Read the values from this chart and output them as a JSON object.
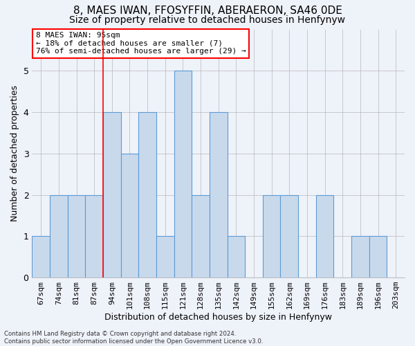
{
  "title": "8, MAES IWAN, FFOSYFFIN, ABERAERON, SA46 0DE",
  "subtitle": "Size of property relative to detached houses in Henfynyw",
  "xlabel": "Distribution of detached houses by size in Henfynyw",
  "ylabel": "Number of detached properties",
  "categories": [
    "67sqm",
    "74sqm",
    "81sqm",
    "87sqm",
    "94sqm",
    "101sqm",
    "108sqm",
    "115sqm",
    "121sqm",
    "128sqm",
    "135sqm",
    "142sqm",
    "149sqm",
    "155sqm",
    "162sqm",
    "169sqm",
    "176sqm",
    "183sqm",
    "189sqm",
    "196sqm",
    "203sqm"
  ],
  "values": [
    1,
    2,
    2,
    2,
    4,
    3,
    4,
    1,
    5,
    2,
    4,
    1,
    0,
    2,
    2,
    0,
    2,
    0,
    1,
    1,
    0
  ],
  "bar_color": "#c9d9ec",
  "bar_edge_color": "#5b9bd5",
  "red_line_index": 4,
  "annotation_text": "8 MAES IWAN: 95sqm\n← 18% of detached houses are smaller (7)\n76% of semi-detached houses are larger (29) →",
  "annotation_box_color": "white",
  "annotation_box_edge_color": "red",
  "ylim": [
    0,
    6
  ],
  "yticks": [
    0,
    1,
    2,
    3,
    4,
    5,
    6
  ],
  "footnote": "Contains HM Land Registry data © Crown copyright and database right 2024.\nContains public sector information licensed under the Open Government Licence v3.0.",
  "background_color": "#eef2f9",
  "title_fontsize": 11,
  "subtitle_fontsize": 10,
  "axis_label_fontsize": 9,
  "tick_fontsize": 8
}
